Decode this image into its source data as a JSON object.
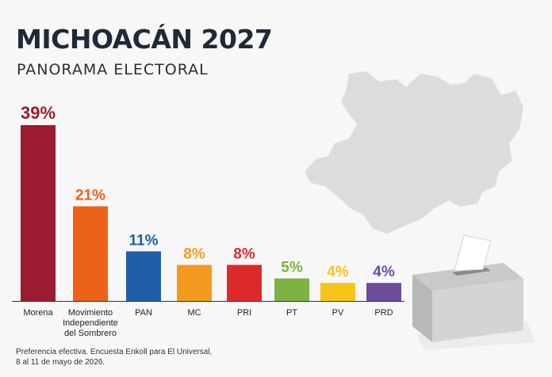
{
  "header": {
    "title": "MICHOACÁN 2027",
    "subtitle": "PANORAMA ELECTORAL"
  },
  "source": {
    "line1": "Preferencia efectiva. Encuesta Enkoll para El Universal,",
    "line2": "8 al 11 de mayo de 2026."
  },
  "chart_data": {
    "type": "bar",
    "title": "",
    "xlabel": "",
    "ylabel": "",
    "ylim": [
      0,
      39
    ],
    "grid": false,
    "categories": [
      [
        "Morena"
      ],
      [
        "Movimiento",
        "Independiente",
        "del Sombrero"
      ],
      [
        "PAN"
      ],
      [
        "MC"
      ],
      [
        "PRI"
      ],
      [
        "PT"
      ],
      [
        "PV"
      ],
      [
        "PRD"
      ]
    ],
    "values": [
      39,
      21,
      11,
      8,
      8,
      5,
      4,
      4
    ],
    "value_labels": [
      "39%",
      "21%",
      "11%",
      "8%",
      "8%",
      "5%",
      "4%",
      "4%"
    ],
    "colors": [
      "#9b1b30",
      "#ee6119",
      "#1f5ea8",
      "#f59a1e",
      "#dd2a2a",
      "#7cb342",
      "#f7c418",
      "#6d4c9e"
    ]
  },
  "icons": {
    "map": "michoacan-map-icon",
    "ballot_box": "ballot-box-icon"
  }
}
